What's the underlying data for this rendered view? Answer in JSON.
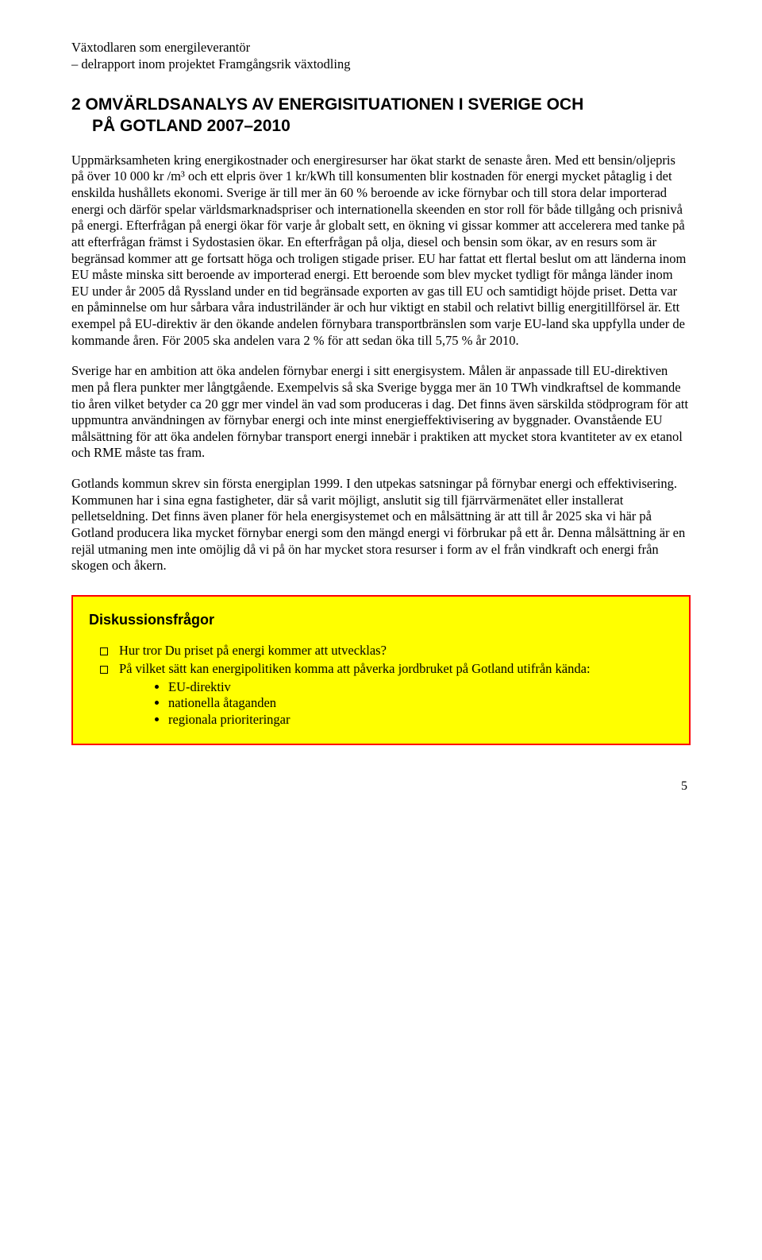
{
  "header": {
    "line1": "Växtodlaren som energileverantör",
    "line2": "– delrapport inom projektet Framgångsrik växtodling"
  },
  "section": {
    "title_line1": "2   OMVÄRLDSANALYS AV ENERGISITUATIONEN I SVERIGE OCH",
    "title_line2": "PÅ GOTLAND 2007–2010"
  },
  "paragraphs": {
    "p1": "Uppmärksamheten kring energikostnader och energiresurser har ökat starkt de senaste åren. Med ett bensin/oljepris på över 10 000 kr /m³ och ett elpris över 1 kr/kWh till konsumenten blir kostnaden för energi  mycket påtaglig i det enskilda hushållets ekonomi. Sverige är till mer än 60 % beroende av icke förnybar och till stora delar importerad energi och därför spelar världsmarknadspriser och internationella skeenden en stor roll för både tillgång och prisnivå på energi. Efterfrågan på energi ökar för varje år globalt sett, en ökning vi gissar kommer att accelerera med tanke på att efterfrågan främst i Sydostasien ökar. En efterfrågan på olja, diesel och bensin som ökar, av en resurs som är begränsad kommer att ge fortsatt höga och troligen stigade priser. EU har fattat ett flertal beslut om att länderna inom EU måste minska sitt beroende av importerad energi. Ett beroende som blev mycket tydligt för många länder inom EU under år 2005 då Ryssland under en tid begränsade exporten av gas till EU och samtidigt höjde priset. Detta var en påminnelse om hur sårbara våra industriländer är och hur viktigt  en stabil och relativt billig energitillförsel är. Ett exempel på EU-direktiv är den ökande andelen förnybara transportbränslen som varje EU-land ska uppfylla under de kommande åren. För 2005 ska andelen vara 2 % för att sedan öka till 5,75 % år 2010.",
    "p2": "Sverige har en ambition att öka andelen förnybar energi i sitt energisystem. Målen är anpassade till EU-direktiven men på flera punkter mer långtgående. Exempelvis så ska Sverige bygga mer än 10 TWh vindkraftsel de kommande tio åren vilket betyder ca 20 ggr mer vindel än vad som produceras i dag. Det finns även särskilda stödprogram för att uppmuntra användningen av förnybar energi och inte minst energieffektivisering av byggnader. Ovanstående EU målsättning för att öka andelen förnybar transport energi innebär i praktiken att mycket stora kvantiteter av ex etanol och RME måste tas fram.",
    "p3": "Gotlands kommun skrev sin första energiplan 1999. I den utpekas satsningar på förnybar energi och effektivisering. Kommunen har i sina egna fastigheter, där så varit möjligt, anslutit sig till fjärrvärmenätet eller installerat pelletseldning. Det finns även planer för hela energisystemet och en målsättning är att till år 2025 ska vi här på Gotland producera lika mycket förnybar energi som den mängd energi vi förbrukar på ett år. Denna målsättning är en rejäl utmaning men inte omöjlig då vi på ön har mycket stora resurser i form av el från vindkraft och energi från skogen och åkern."
  },
  "callout": {
    "title": "Diskussionsfrågor",
    "q1": "Hur tror Du priset på energi kommer att utvecklas?",
    "q2": "På vilket sätt kan energipolitiken komma att påverka jordbruket på Gotland utifrån kända:",
    "sub1": "EU-direktiv",
    "sub2": "nationella åtaganden",
    "sub3": "regionala prioriteringar"
  },
  "page_number": "5"
}
